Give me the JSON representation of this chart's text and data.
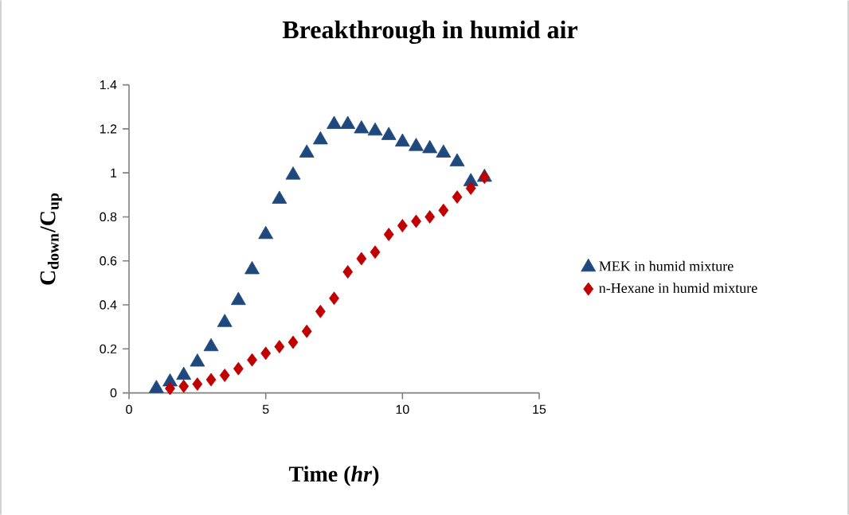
{
  "chart_data": {
    "type": "scatter",
    "title": "Breakthrough in humid air",
    "xlabel": "Time (*hr*)",
    "ylabel": "C$_{down}$/C$_{up}$",
    "xlim": [
      0,
      15
    ],
    "xticks": [
      0,
      5,
      10,
      15
    ],
    "ylim": [
      0,
      1.4
    ],
    "yticks": [
      0,
      0.2,
      0.4,
      0.6,
      0.8,
      1,
      1.2,
      1.4
    ],
    "grid": false,
    "legend": "right",
    "series": [
      {
        "name": "MEK in humid mixture",
        "color": "#1f497d",
        "marker": "triangle",
        "x": [
          1,
          1.5,
          2,
          2.5,
          3,
          3.5,
          4,
          4.5,
          5,
          5.5,
          6,
          6.5,
          7,
          7.5,
          8,
          8.5,
          9,
          9.5,
          10,
          10.5,
          11,
          11.5,
          12,
          12.5,
          13
        ],
        "values": [
          0.02,
          0.05,
          0.08,
          0.14,
          0.21,
          0.32,
          0.42,
          0.56,
          0.72,
          0.88,
          0.99,
          1.09,
          1.15,
          1.22,
          1.22,
          1.2,
          1.19,
          1.17,
          1.14,
          1.12,
          1.11,
          1.09,
          1.05,
          0.96,
          0.98
        ]
      },
      {
        "name": "n-Hexane in humid mixture",
        "color": "#c00000",
        "marker": "diamond",
        "x": [
          1.5,
          2,
          2.5,
          3,
          3.5,
          4,
          4.5,
          5,
          5.5,
          6,
          6.5,
          7,
          7.5,
          8,
          8.5,
          9,
          9.5,
          10,
          10.5,
          11,
          11.5,
          12,
          12.5,
          13
        ],
        "values": [
          0.02,
          0.03,
          0.04,
          0.06,
          0.08,
          0.11,
          0.15,
          0.18,
          0.21,
          0.23,
          0.28,
          0.37,
          0.43,
          0.55,
          0.61,
          0.64,
          0.72,
          0.76,
          0.78,
          0.8,
          0.83,
          0.89,
          0.93,
          0.98
        ]
      }
    ]
  }
}
